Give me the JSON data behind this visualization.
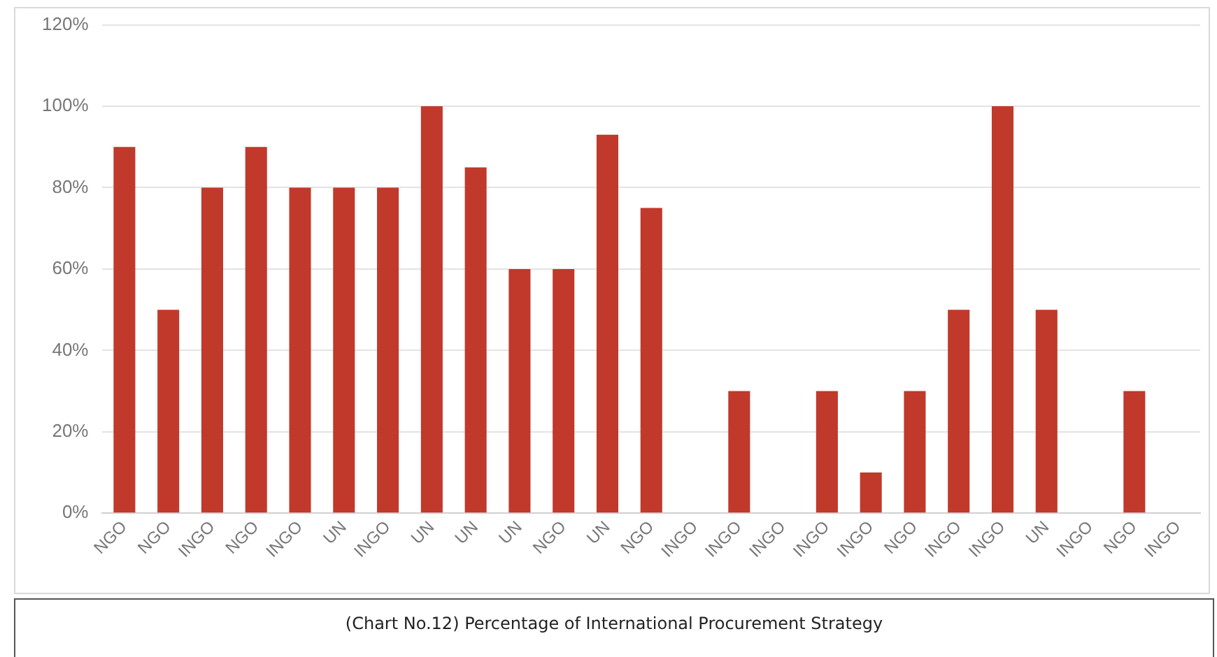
{
  "chart_data": {
    "type": "bar",
    "title": "(Chart No.12) Percentage of International Procurement Strategy",
    "categories": [
      "NGO",
      "NGO",
      "INGO",
      "NGO",
      "INGO",
      "UN",
      "INGO",
      "UN",
      "UN",
      "UN",
      "NGO",
      "UN",
      "NGO",
      "INGO",
      "INGO",
      "INGO",
      "INGO",
      "INGO",
      "NGO",
      "INGO",
      "INGO",
      "UN",
      "INGO",
      "NGO",
      "INGO"
    ],
    "values": [
      90,
      50,
      80,
      90,
      80,
      80,
      80,
      100,
      85,
      60,
      60,
      93,
      75,
      0,
      30,
      0,
      30,
      10,
      30,
      50,
      100,
      50,
      0,
      30,
      0
    ],
    "color": "#c0392b",
    "ylim": [
      0,
      120
    ],
    "yticks": [
      {
        "value": 0,
        "label": "0%"
      },
      {
        "value": 20,
        "label": "20%"
      },
      {
        "value": 40,
        "label": "40%"
      },
      {
        "value": 60,
        "label": "60%"
      },
      {
        "value": 80,
        "label": "80%"
      },
      {
        "value": 100,
        "label": "100%"
      },
      {
        "value": 120,
        "label": "120%"
      }
    ],
    "grid": "y",
    "legend": false
  }
}
